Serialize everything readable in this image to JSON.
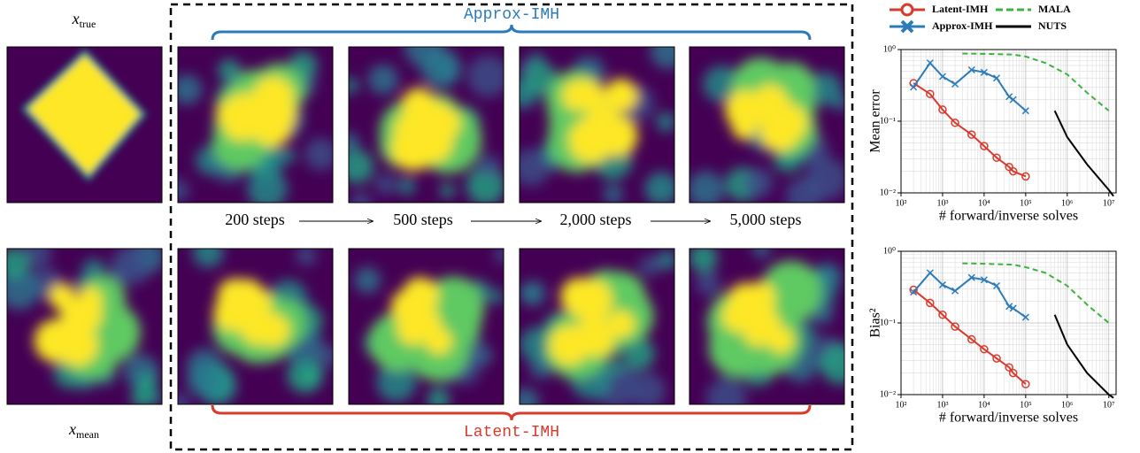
{
  "figure": {
    "x_true": {
      "symbol": "x",
      "subscript": "true"
    },
    "x_mean": {
      "symbol": "x",
      "subscript": "mean"
    },
    "approx_label": "Approx-IMH",
    "latent_label": "Latent-IMH",
    "steps": [
      "200 steps",
      "500 steps",
      "2,000 steps",
      "5,000 steps"
    ]
  },
  "chart_data": [
    {
      "type": "line",
      "ylabel": "Mean error",
      "xlabel": "# forward/inverse solves",
      "log_x": true,
      "log_y": true,
      "grid": true,
      "legend": "top",
      "xlim": [
        100,
        15000000
      ],
      "ylim": [
        0.01,
        1
      ],
      "xticks": [
        {
          "value": 100,
          "label": "10²"
        },
        {
          "value": 1000,
          "label": "10³"
        },
        {
          "value": 10000,
          "label": "10⁴"
        },
        {
          "value": 100000,
          "label": "10⁵"
        },
        {
          "value": 1000000,
          "label": "10⁶"
        },
        {
          "value": 10000000,
          "label": "10⁷"
        }
      ],
      "yticks": [
        {
          "value": 0.01,
          "label": "10⁻²"
        },
        {
          "value": 0.1,
          "label": "10⁻¹"
        },
        {
          "value": 1,
          "label": "10⁰"
        }
      ],
      "series": [
        {
          "name": "Latent-IMH",
          "color": "#d93a2b",
          "marker": "o",
          "dash": false,
          "x": [
            200,
            500,
            1000,
            2000,
            5000,
            10000,
            20000,
            40000,
            50000,
            100000
          ],
          "values": [
            0.34,
            0.24,
            0.145,
            0.095,
            0.065,
            0.045,
            0.031,
            0.023,
            0.02,
            0.017
          ]
        },
        {
          "name": "Approx-IMH",
          "color": "#2b7bba",
          "marker": "x",
          "dash": false,
          "x": [
            200,
            500,
            1000,
            2000,
            5000,
            10000,
            20000,
            40000,
            50000,
            100000
          ],
          "values": [
            0.3,
            0.65,
            0.42,
            0.33,
            0.52,
            0.48,
            0.4,
            0.22,
            0.2,
            0.14
          ]
        },
        {
          "name": "MALA",
          "color": "#3db23d",
          "marker": null,
          "dash": true,
          "x": [
            3000,
            10000,
            50000,
            100000,
            300000,
            1000000,
            3000000,
            10000000
          ],
          "values": [
            0.88,
            0.87,
            0.85,
            0.8,
            0.65,
            0.45,
            0.25,
            0.14
          ]
        },
        {
          "name": "NUTS",
          "color": "#000000",
          "marker": null,
          "dash": false,
          "x": [
            500000,
            1000000,
            3000000,
            10000000,
            13000000
          ],
          "values": [
            0.14,
            0.06,
            0.025,
            0.011,
            0.009
          ]
        }
      ]
    },
    {
      "type": "line",
      "ylabel": "Bias²",
      "xlabel": "# forward/inverse solves",
      "log_x": true,
      "log_y": true,
      "grid": true,
      "xlim": [
        100,
        15000000
      ],
      "ylim": [
        0.01,
        1
      ],
      "xticks": [
        {
          "value": 100,
          "label": "10²"
        },
        {
          "value": 1000,
          "label": "10³"
        },
        {
          "value": 10000,
          "label": "10⁴"
        },
        {
          "value": 100000,
          "label": "10⁵"
        },
        {
          "value": 1000000,
          "label": "10⁶"
        },
        {
          "value": 10000000,
          "label": "10⁷"
        }
      ],
      "yticks": [
        {
          "value": 0.01,
          "label": "10⁻²"
        },
        {
          "value": 0.1,
          "label": "10⁻¹"
        },
        {
          "value": 1,
          "label": "10⁰"
        }
      ],
      "series": [
        {
          "color": "#d93a2b",
          "marker": "o",
          "dash": false,
          "x": [
            200,
            500,
            1000,
            2000,
            5000,
            10000,
            20000,
            40000,
            50000,
            100000
          ],
          "values": [
            0.29,
            0.19,
            0.13,
            0.089,
            0.059,
            0.043,
            0.032,
            0.024,
            0.02,
            0.014
          ]
        },
        {
          "color": "#2b7bba",
          "marker": "x",
          "dash": false,
          "x": [
            200,
            500,
            1000,
            2000,
            5000,
            10000,
            20000,
            40000,
            50000,
            100000
          ],
          "values": [
            0.27,
            0.5,
            0.34,
            0.28,
            0.43,
            0.4,
            0.33,
            0.17,
            0.16,
            0.12
          ]
        },
        {
          "color": "#3db23d",
          "marker": null,
          "dash": true,
          "x": [
            3000,
            10000,
            50000,
            100000,
            300000,
            1000000,
            3000000,
            10000000
          ],
          "values": [
            0.68,
            0.67,
            0.65,
            0.6,
            0.5,
            0.33,
            0.18,
            0.1
          ]
        },
        {
          "color": "#000000",
          "marker": null,
          "dash": false,
          "x": [
            500000,
            1000000,
            3000000,
            10000000,
            13000000
          ],
          "values": [
            0.13,
            0.05,
            0.02,
            0.01,
            0.009
          ]
        }
      ]
    }
  ]
}
